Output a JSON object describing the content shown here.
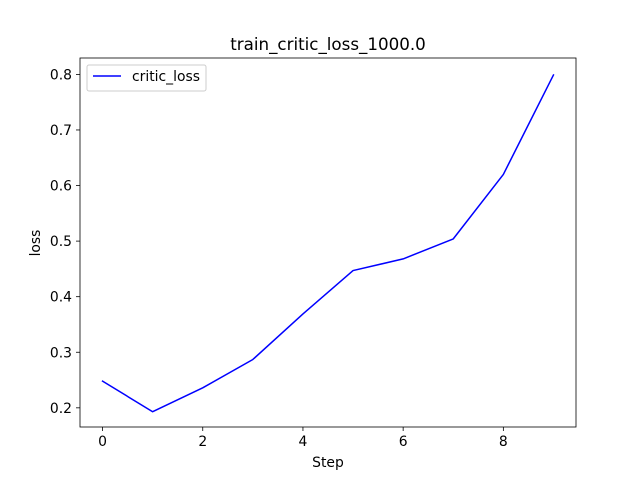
{
  "chart_data": {
    "type": "line",
    "title": "train_critic_loss_1000.0",
    "xlabel": "Step",
    "ylabel": "loss",
    "xlim": [
      -0.45,
      9.45
    ],
    "ylim": [
      0.1655,
      0.8295
    ],
    "xticks": [
      0,
      2,
      4,
      6,
      8
    ],
    "xtick_labels": [
      "0",
      "2",
      "4",
      "6",
      "8"
    ],
    "yticks": [
      0.2,
      0.3,
      0.4,
      0.5,
      0.6,
      0.7,
      0.8
    ],
    "ytick_labels": [
      "0.2",
      "0.3",
      "0.4",
      "0.5",
      "0.6",
      "0.7",
      "0.8"
    ],
    "grid": false,
    "legend_position": "top-left",
    "series": [
      {
        "name": "critic_loss",
        "color": "#0000ff",
        "x": [
          0,
          1,
          2,
          3,
          4,
          5,
          6,
          7,
          8,
          9
        ],
        "y": [
          0.248,
          0.193,
          0.236,
          0.287,
          0.369,
          0.447,
          0.468,
          0.504,
          0.62,
          0.799
        ]
      }
    ]
  }
}
